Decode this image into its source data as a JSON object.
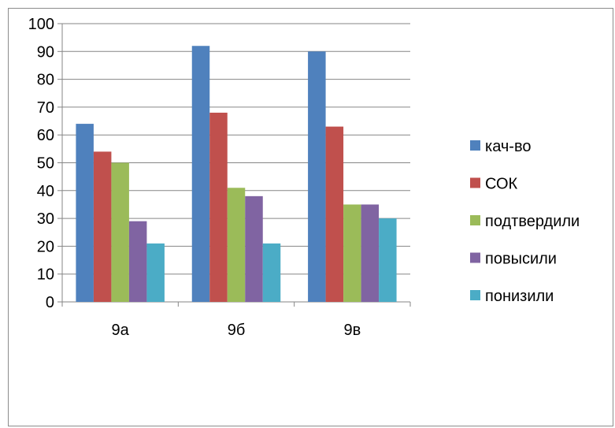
{
  "chart_data": {
    "type": "bar",
    "categories": [
      "9а",
      "9б",
      "9в"
    ],
    "series": [
      {
        "name": "кач-во",
        "color": "#4F81BD",
        "values": [
          64,
          92,
          90
        ]
      },
      {
        "name": "СОК",
        "color": "#C0504D",
        "values": [
          54,
          68,
          63
        ]
      },
      {
        "name": "подтвердили",
        "color": "#9BBB59",
        "values": [
          50,
          41,
          35
        ]
      },
      {
        "name": "повысили",
        "color": "#8064A2",
        "values": [
          29,
          38,
          35
        ]
      },
      {
        "name": "понизили",
        "color": "#4BACC6",
        "values": [
          21,
          21,
          30
        ]
      }
    ],
    "ylim": [
      0,
      100
    ],
    "yticks": [
      "0",
      "10",
      "20",
      "30",
      "40",
      "50",
      "60",
      "70",
      "80",
      "90",
      "100"
    ],
    "grid": true,
    "legend_position": "right"
  }
}
